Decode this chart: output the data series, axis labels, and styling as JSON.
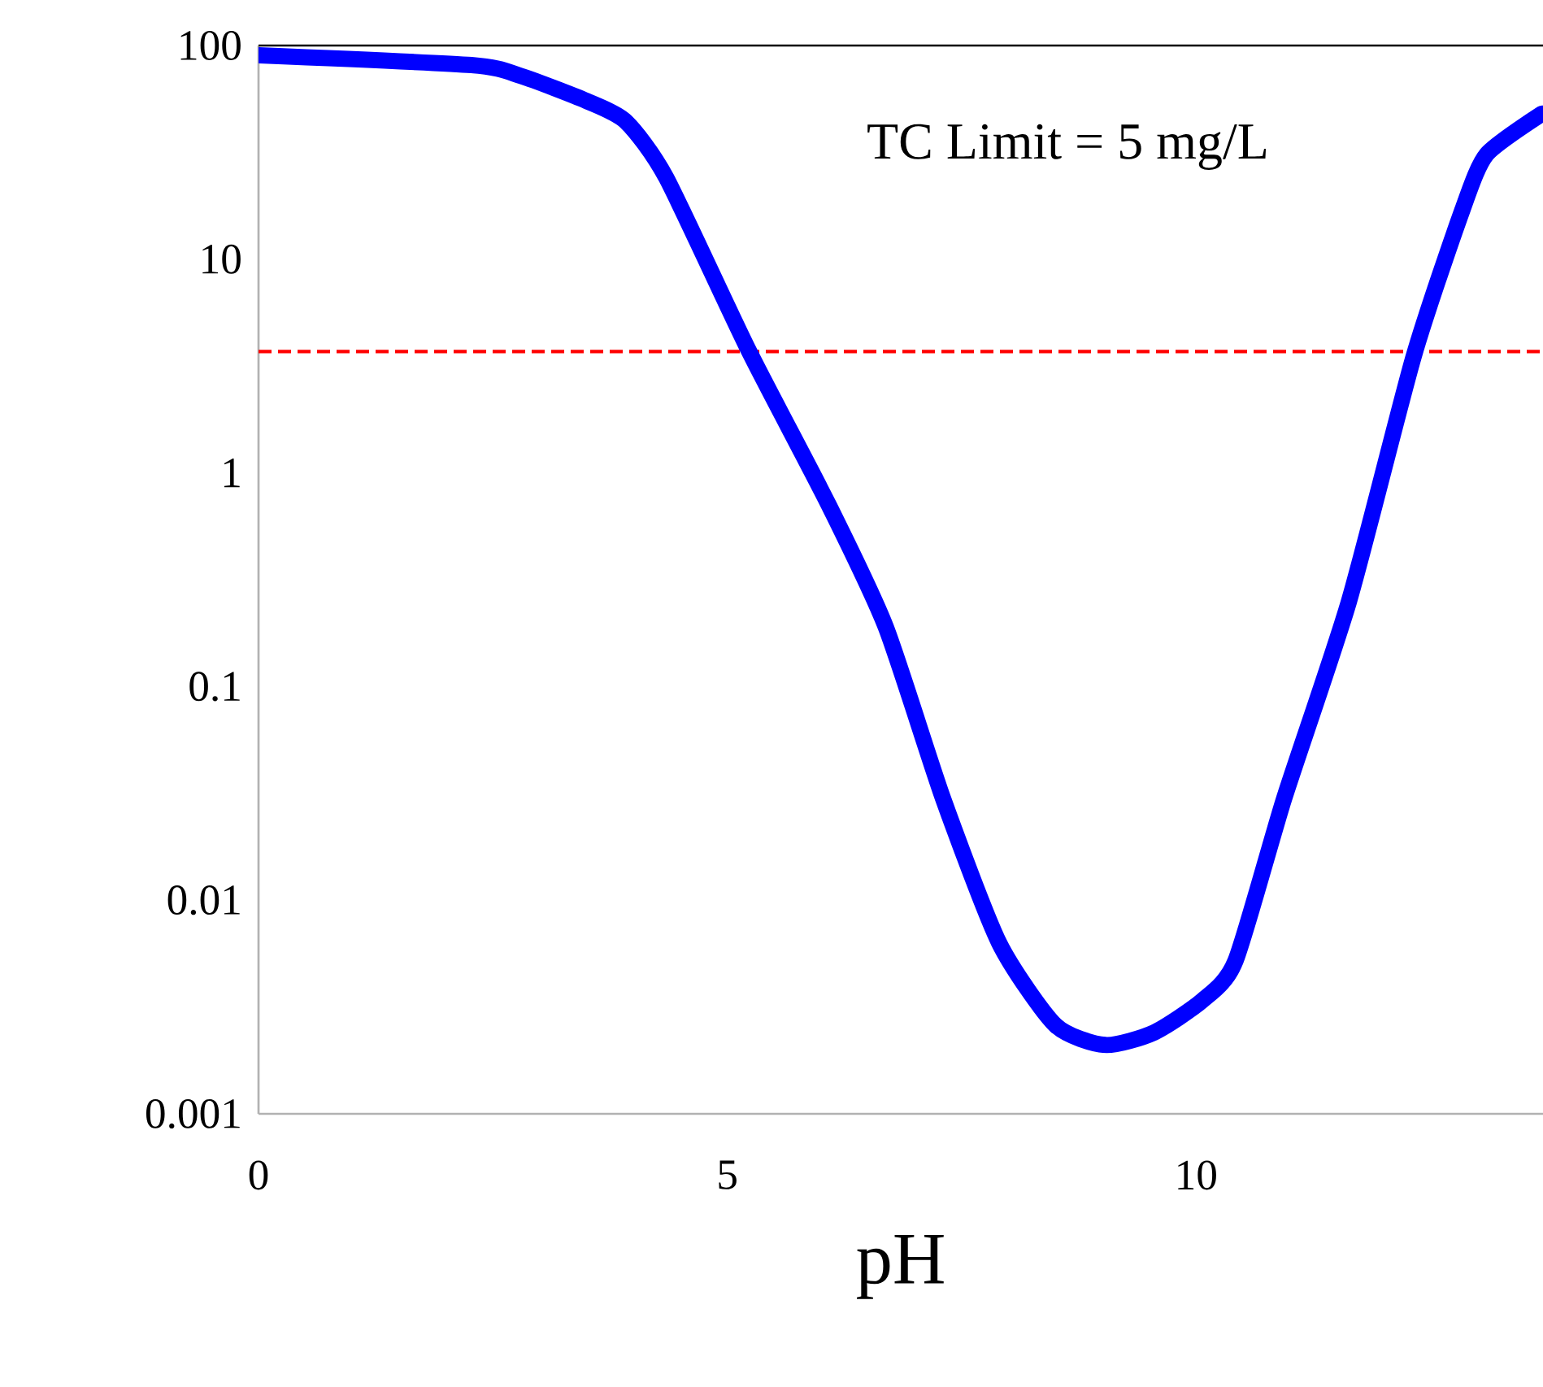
{
  "chart_data": {
    "type": "line",
    "xlabel": "pH",
    "x": [
      0,
      2.27,
      2.8,
      3.5,
      3.92,
      4.35,
      5.22,
      6.08,
      6.69,
      7.3,
      7.9,
      8.5,
      9.03,
      9.55,
      10.07,
      10.42,
      10.94,
      11.63,
      12.32,
      12.84,
      13.1,
      13.69
    ],
    "values": [
      90,
      81,
      72,
      55,
      44,
      24,
      3.8,
      0.71,
      0.19,
      0.03,
      0.0063,
      0.0026,
      0.0021,
      0.0024,
      0.0034,
      0.0052,
      0.03,
      0.25,
      3.5,
      17,
      31,
      48
    ],
    "color": "#0000ff",
    "xlim": [
      0,
      13.7
    ],
    "ylim": [
      0.001,
      100
    ],
    "xticks": [
      0,
      5,
      10
    ],
    "yticks": [
      0.001,
      0.01,
      0.1,
      1,
      10,
      100
    ],
    "log": true,
    "annotations": [
      "TC Limit = 5 mg/L"
    ],
    "ref_lines": [
      {
        "axis": "y",
        "value": 3.7,
        "color": "#ff0000",
        "line_style": "dashed"
      }
    ]
  }
}
